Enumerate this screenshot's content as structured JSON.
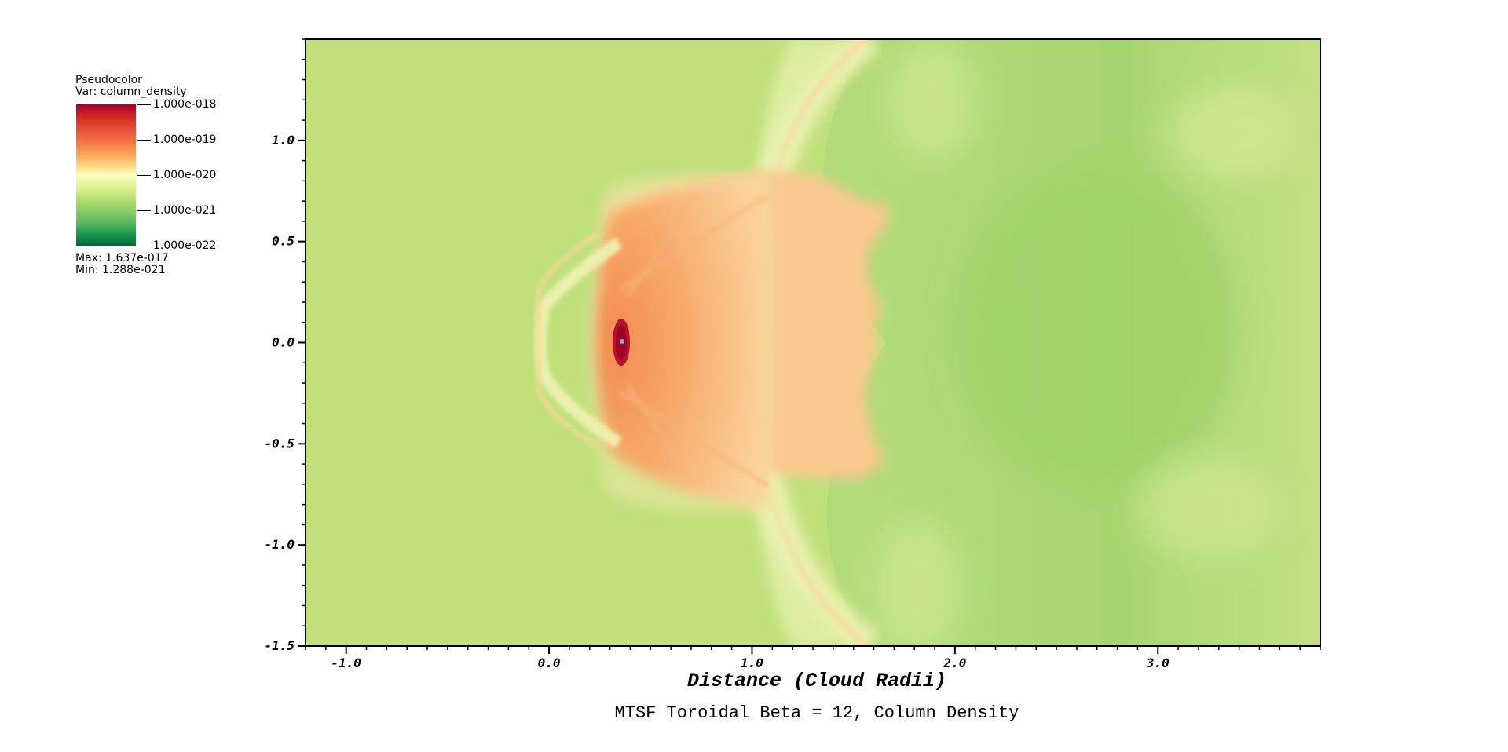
{
  "legend": {
    "title": "Pseudocolor",
    "var": "Var: column_density",
    "max": "Max:  1.637e-017",
    "min": "Min:  1.288e-021",
    "tick_labels": [
      "1.000e-018",
      "1.000e-019",
      "1.000e-020",
      "1.000e-021",
      "1.000e-022"
    ],
    "colormap": [
      "#a50026",
      "#d73027",
      "#f46d43",
      "#fdae61",
      "#fee08b",
      "#ffffbf",
      "#d9ef8b",
      "#a6d96a",
      "#66bd63",
      "#1a9850",
      "#006837"
    ]
  },
  "chart_data": {
    "type": "heatmap",
    "title": "MTSF Toroidal Beta = 12, Column Density",
    "xlabel": "Distance (Cloud Radii)",
    "ylabel": "",
    "xlim": [
      -1.2,
      3.8
    ],
    "ylim": [
      -1.5,
      1.5
    ],
    "x_ticks": [
      -1.0,
      0.0,
      1.0,
      2.0,
      3.0
    ],
    "x_tick_labels": [
      "-1.0",
      "0.0",
      "1.0",
      "2.0",
      "3.0"
    ],
    "y_ticks": [
      1.0,
      0.5,
      0.0,
      -0.5,
      -1.0,
      -1.5
    ],
    "y_tick_labels": [
      "1.0",
      "0.5",
      "0.0",
      "-0.5",
      "-1.0",
      "-1.5"
    ],
    "variable": "column_density",
    "colorbar_range": [
      1e-22,
      1e-18
    ],
    "colorbar_scale": "log",
    "data_max": 1.637e-17,
    "data_min": 1.288e-21,
    "background_color": "#c0e07c",
    "peak_location": [
      0.35,
      0.0
    ],
    "bow_shock_apex_x": 0.25
  }
}
